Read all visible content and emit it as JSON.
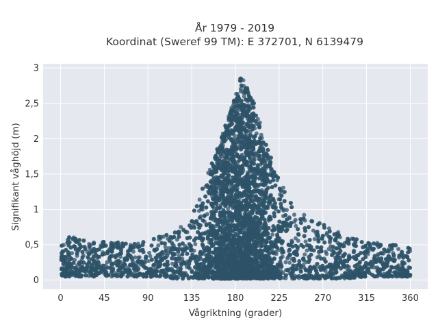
{
  "chart_data": {
    "type": "scatter",
    "title": "År 1979 - 2019",
    "subtitle": "Koordinat (Sweref 99 TM): E 372701, N 6139479",
    "xlabel": "Vågriktning (grader)",
    "ylabel": "Signifikant våghöjd (m)",
    "xlim": [
      -18,
      378
    ],
    "ylim": [
      -0.13,
      3.06
    ],
    "x_ticks": [
      0,
      45,
      90,
      135,
      180,
      225,
      270,
      315,
      360
    ],
    "x_tick_labels": [
      "0",
      "45",
      "90",
      "135",
      "180",
      "225",
      "270",
      "315",
      "360"
    ],
    "y_ticks": [
      0,
      0.5,
      1,
      1.5,
      2,
      2.5,
      3
    ],
    "y_tick_labels": [
      "0",
      "0,5",
      "1",
      "1,5",
      "2",
      "2,5",
      "3"
    ],
    "grid": true,
    "legend": "none",
    "marker_color": "#2e5368",
    "plot_bg": "#e5e8ef",
    "grid_color": "#ffffff",
    "envelope": {
      "description_points_x": [
        0,
        10,
        20,
        30,
        45,
        60,
        75,
        90,
        100,
        110,
        120,
        130,
        140,
        150,
        160,
        170,
        180,
        185,
        190,
        195,
        200,
        210,
        220,
        230,
        240,
        250,
        260,
        270,
        280,
        290,
        300,
        315,
        330,
        345,
        360
      ],
      "upper_y": [
        0.5,
        0.62,
        0.6,
        0.55,
        0.55,
        0.55,
        0.55,
        0.6,
        0.62,
        0.68,
        0.72,
        0.8,
        1.05,
        1.5,
        1.8,
        2.2,
        2.6,
        2.9,
        2.8,
        2.6,
        2.5,
        2.0,
        1.6,
        1.35,
        1.1,
        0.95,
        0.85,
        0.8,
        0.72,
        0.65,
        0.6,
        0.55,
        0.52,
        0.5,
        0.45
      ],
      "lower_y": [
        0.05,
        0.05,
        0.05,
        0.05,
        0.05,
        0.05,
        0.05,
        0.05,
        0.03,
        0.03,
        0.02,
        0.02,
        0.02,
        0.02,
        0.02,
        0.02,
        0.02,
        0.02,
        0.02,
        0.02,
        0.02,
        0.02,
        0.02,
        0.02,
        0.02,
        0.02,
        0.02,
        0.02,
        0.02,
        0.02,
        0.03,
        0.05,
        0.05,
        0.05,
        0.05
      ]
    }
  }
}
